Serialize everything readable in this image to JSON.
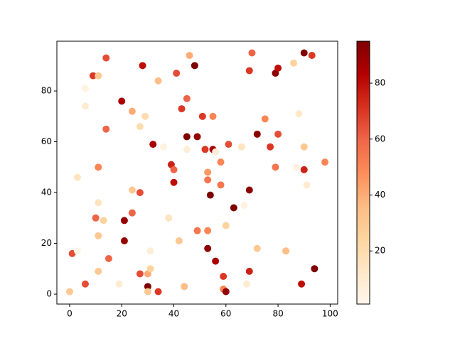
{
  "chart_data": {
    "type": "scatter",
    "colormap": "OrRd",
    "x": [
      0,
      1,
      3,
      3,
      6,
      6,
      6,
      9,
      11,
      10,
      11,
      11,
      11,
      11,
      13,
      14,
      14,
      15,
      19,
      20,
      21,
      21,
      24,
      24,
      24,
      27,
      27,
      27,
      28,
      29,
      30,
      30,
      30,
      31,
      31,
      32,
      34,
      34,
      36,
      38,
      39,
      40,
      40,
      41,
      42,
      43,
      44,
      45,
      45,
      45,
      46,
      48,
      49,
      49,
      51,
      52,
      53,
      53,
      53,
      53,
      54,
      55,
      55,
      56,
      56,
      58,
      58,
      59,
      59,
      60,
      60,
      61,
      63,
      66,
      67,
      68,
      69,
      69,
      69,
      70,
      72,
      72,
      75,
      77,
      79,
      79,
      80,
      80,
      83,
      86,
      87,
      88,
      89,
      90,
      90,
      90,
      91,
      93,
      94,
      98
    ],
    "y": [
      1,
      16,
      17,
      46,
      4,
      74,
      81,
      86,
      86,
      30,
      50,
      36,
      23,
      9,
      29,
      93,
      65,
      14,
      4,
      76,
      29,
      21,
      72,
      41,
      32,
      66,
      40,
      8,
      90,
      70,
      3,
      8,
      1,
      10,
      17,
      59,
      1,
      84,
      58,
      30,
      51,
      44,
      49,
      87,
      21,
      73,
      3,
      77,
      62,
      57,
      94,
      90,
      62,
      25,
      70,
      57,
      48,
      45,
      25,
      18,
      39,
      70,
      57,
      56,
      13,
      52,
      43,
      7,
      2,
      1,
      27,
      59,
      34,
      58,
      35,
      4,
      9,
      41,
      88,
      95,
      63,
      18,
      69,
      58,
      50,
      87,
      89,
      63,
      17,
      91,
      50,
      71,
      4,
      95,
      58,
      49,
      43,
      94,
      10,
      52
    ],
    "c": [
      30,
      65,
      3,
      15,
      65,
      10,
      5,
      70,
      30,
      60,
      50,
      15,
      30,
      30,
      25,
      65,
      60,
      60,
      10,
      85,
      90,
      90,
      40,
      30,
      60,
      20,
      65,
      65,
      80,
      20,
      95,
      40,
      30,
      25,
      8,
      85,
      70,
      35,
      5,
      15,
      75,
      80,
      60,
      65,
      30,
      70,
      35,
      60,
      95,
      8,
      40,
      95,
      90,
      55,
      70,
      70,
      45,
      55,
      50,
      92,
      95,
      50,
      85,
      8,
      85,
      50,
      55,
      70,
      50,
      90,
      25,
      65,
      95,
      15,
      5,
      10,
      75,
      92,
      70,
      60,
      92,
      30,
      50,
      70,
      55,
      92,
      80,
      65,
      35,
      25,
      5,
      12,
      80,
      95,
      30,
      75,
      10,
      70,
      95,
      50
    ],
    "xlim": [
      -4.9,
      102.9
    ],
    "ylim": [
      -3.9,
      99.6
    ],
    "xticks": [
      0,
      20,
      40,
      60,
      80,
      100
    ],
    "yticks": [
      0,
      20,
      40,
      60,
      80
    ],
    "clim": [
      1,
      95
    ],
    "cticks": [
      20,
      40,
      60,
      80
    ]
  }
}
